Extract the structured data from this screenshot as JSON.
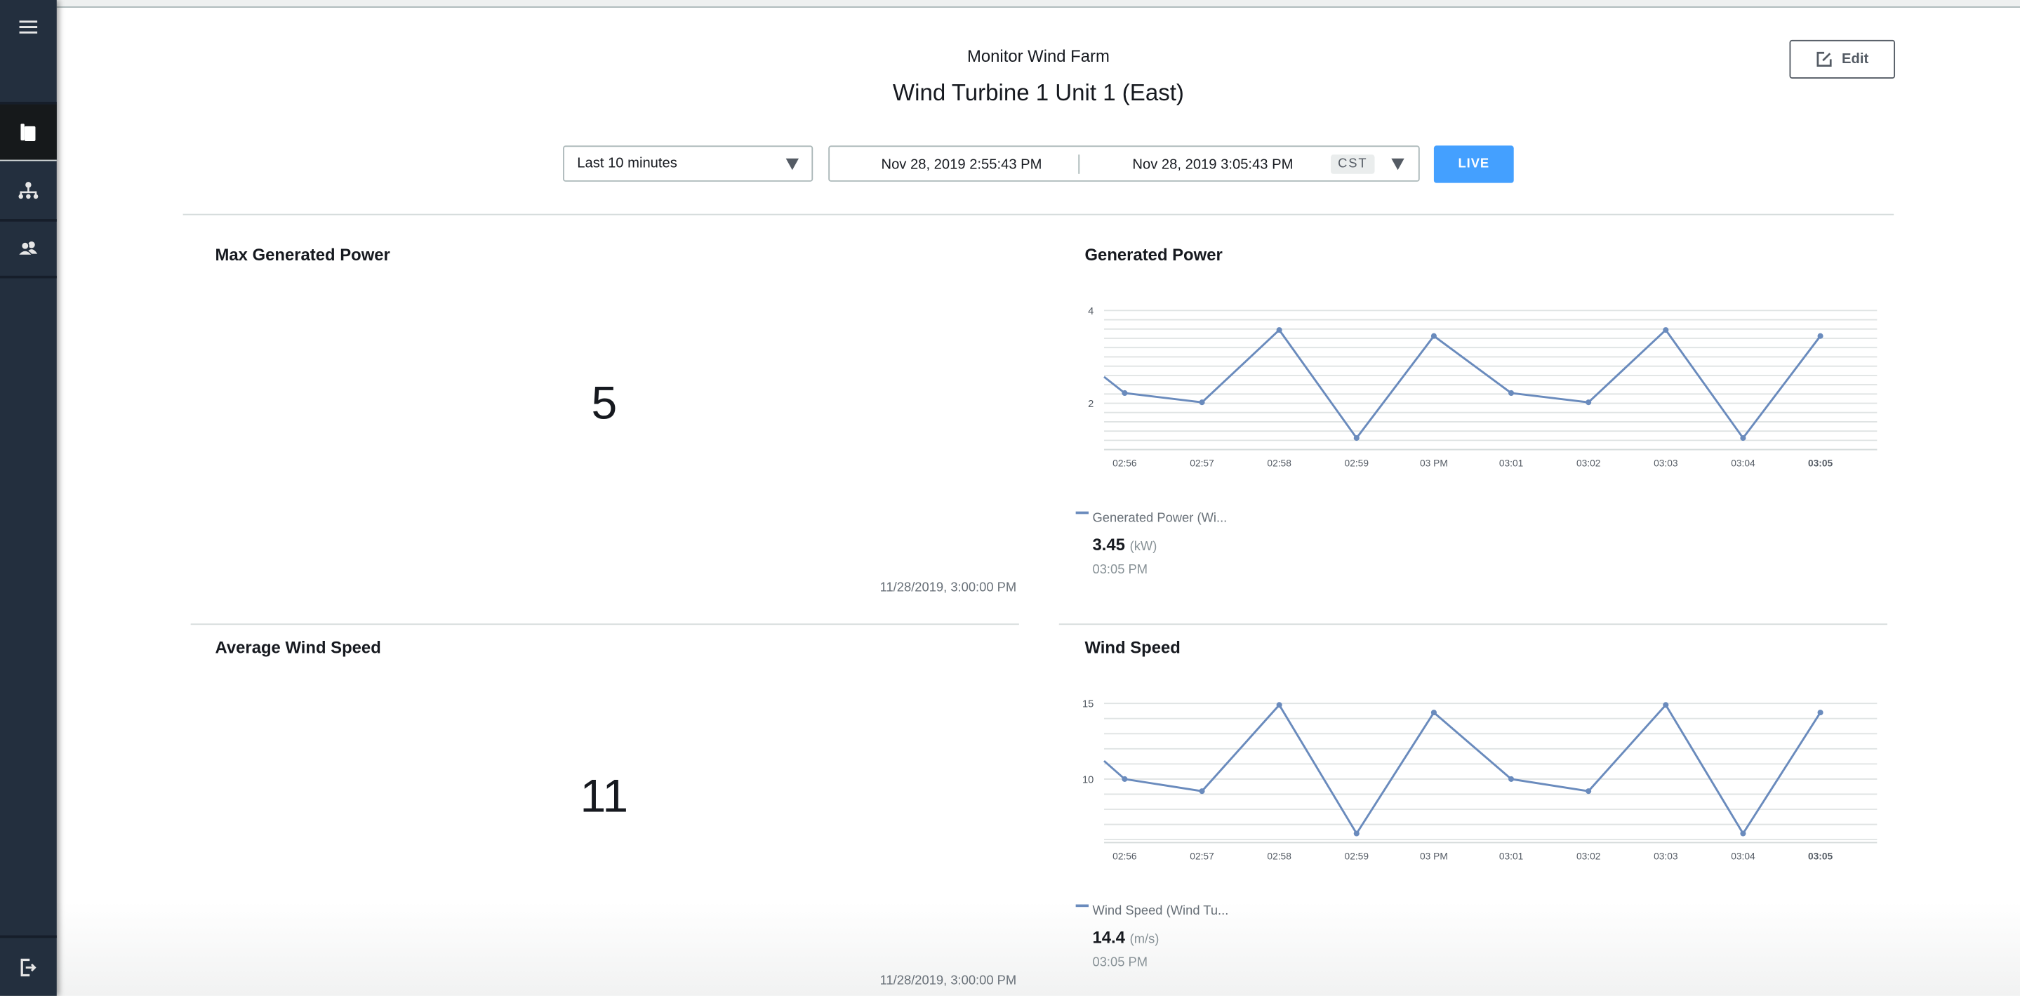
{
  "header": {
    "subtitle": "Monitor Wind Farm",
    "title": "Wind Turbine 1 Unit 1 (East)",
    "edit_label": "Edit"
  },
  "sidebar": {
    "items": [
      {
        "name": "menu",
        "icon": "hamburger-menu-icon"
      },
      {
        "name": "dashboards",
        "icon": "book-icon",
        "active": true
      },
      {
        "name": "hierarchy",
        "icon": "sitemap-icon"
      },
      {
        "name": "users",
        "icon": "users-icon"
      },
      {
        "name": "sign-out",
        "icon": "sign-out-icon"
      }
    ]
  },
  "time_controls": {
    "preset": "Last 10 minutes",
    "start": "Nov 28, 2019 2:55:43 PM",
    "end": "Nov 28, 2019 3:05:43 PM",
    "timezone": "CST",
    "live_label": "LIVE",
    "live_color": "#44a0ff"
  },
  "panels": {
    "max_power": {
      "title": "Max Generated Power",
      "value": "5",
      "timestamp": "11/28/2019, 3:00:00 PM"
    },
    "avg_wind": {
      "title": "Average Wind Speed",
      "value": "11",
      "timestamp": "11/28/2019, 3:00:00 PM"
    },
    "power_chart": {
      "title": "Generated Power",
      "legend_name": "Generated Power (Wi...",
      "latest_value": "3.45",
      "unit": "(kW)",
      "latest_time": "03:05 PM"
    },
    "wind_chart": {
      "title": "Wind Speed",
      "legend_name": "Wind Speed (Wind Tu...",
      "latest_value": "14.4",
      "unit": "(m/s)",
      "latest_time": "03:05 PM"
    }
  },
  "chart_data": [
    {
      "type": "line",
      "title": "Generated Power",
      "categories": [
        "02:56",
        "02:57",
        "02:58",
        "02:59",
        "03 PM",
        "03:01",
        "03:02",
        "03:03",
        "03:04",
        "03:05"
      ],
      "series": [
        {
          "name": "Generated Power (Wi...",
          "color": "#6a8bbd",
          "values": [
            2.22,
            2.02,
            3.58,
            1.25,
            3.45,
            2.22,
            2.02,
            3.58,
            1.25,
            3.45
          ],
          "leading_value": 2.57
        }
      ],
      "yticks": [
        2,
        4
      ],
      "ylim": [
        1.0,
        4.0
      ],
      "grid": true
    },
    {
      "type": "line",
      "title": "Wind Speed",
      "categories": [
        "02:56",
        "02:57",
        "02:58",
        "02:59",
        "03 PM",
        "03:01",
        "03:02",
        "03:03",
        "03:04",
        "03:05"
      ],
      "series": [
        {
          "name": "Wind Speed (Wind Tu...",
          "color": "#6a8bbd",
          "values": [
            10.0,
            9.2,
            14.9,
            6.4,
            14.4,
            10.0,
            9.2,
            14.9,
            6.4,
            14.4
          ],
          "leading_value": 11.2
        }
      ],
      "yticks": [
        10,
        15
      ],
      "ylim": [
        5.8,
        15
      ],
      "grid": true
    }
  ]
}
